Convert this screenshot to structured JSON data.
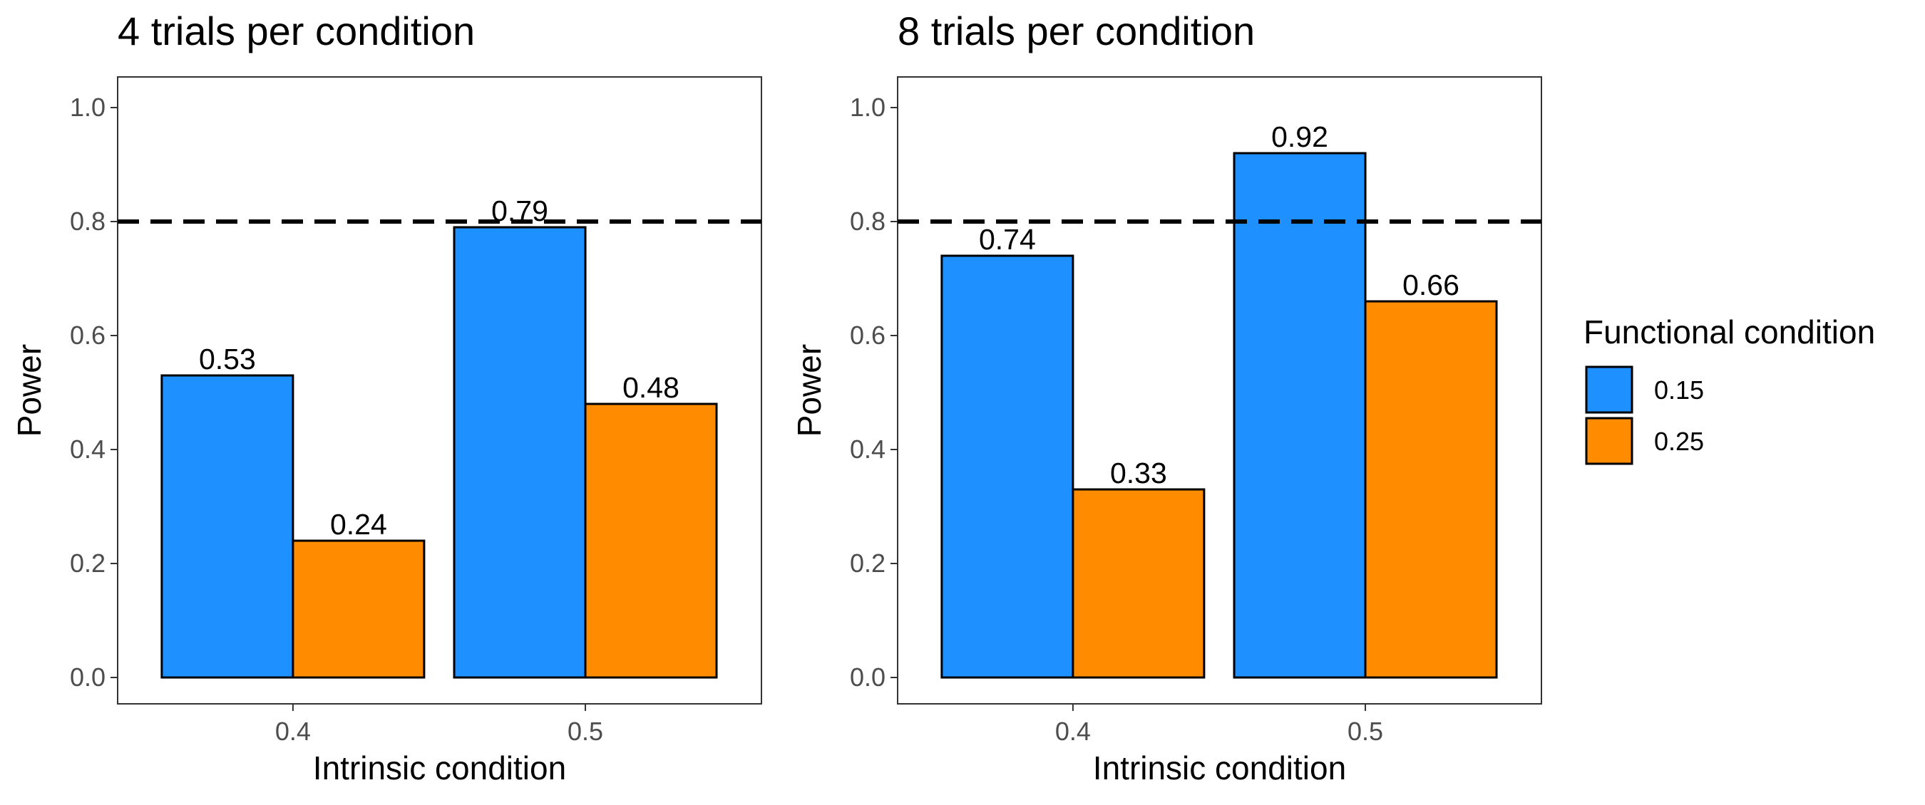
{
  "chart_data": [
    {
      "type": "bar",
      "title": "4 trials per condition",
      "xlabel": "Intrinsic condition",
      "ylabel": "Power",
      "categories": [
        "0.4",
        "0.5"
      ],
      "series": [
        {
          "name": "0.15",
          "values": [
            0.53,
            0.79
          ],
          "labels": [
            "0.53",
            "0.79"
          ]
        },
        {
          "name": "0.25",
          "values": [
            0.24,
            0.48
          ],
          "labels": [
            "0.24",
            "0.48"
          ]
        }
      ],
      "ylim": [
        0,
        1.0
      ],
      "yticks": [
        "0.0",
        "0.2",
        "0.4",
        "0.6",
        "0.8",
        "1.0"
      ],
      "reference_line": {
        "y": 0.8,
        "style": "dashed"
      },
      "grid": false
    },
    {
      "type": "bar",
      "title": "8 trials per condition",
      "xlabel": "Intrinsic condition",
      "ylabel": "Power",
      "categories": [
        "0.4",
        "0.5"
      ],
      "series": [
        {
          "name": "0.15",
          "values": [
            0.74,
            0.92
          ],
          "labels": [
            "0.74",
            "0.92"
          ]
        },
        {
          "name": "0.25",
          "values": [
            0.33,
            0.66
          ],
          "labels": [
            "0.33",
            "0.66"
          ]
        }
      ],
      "ylim": [
        0,
        1.0
      ],
      "yticks": [
        "0.0",
        "0.2",
        "0.4",
        "0.6",
        "0.8",
        "1.0"
      ],
      "reference_line": {
        "y": 0.8,
        "style": "dashed"
      },
      "grid": false
    }
  ],
  "legend": {
    "title": "Functional condition",
    "position": "right",
    "items": [
      {
        "label": "0.15",
        "color": "#1E90FF"
      },
      {
        "label": "0.25",
        "color": "#FF8C00"
      }
    ]
  },
  "colors": {
    "series_0": "#1E90FF",
    "series_1": "#FF8C00",
    "outline": "#000000",
    "panel_border": "#333333",
    "tick_text": "#4d4d4d"
  }
}
